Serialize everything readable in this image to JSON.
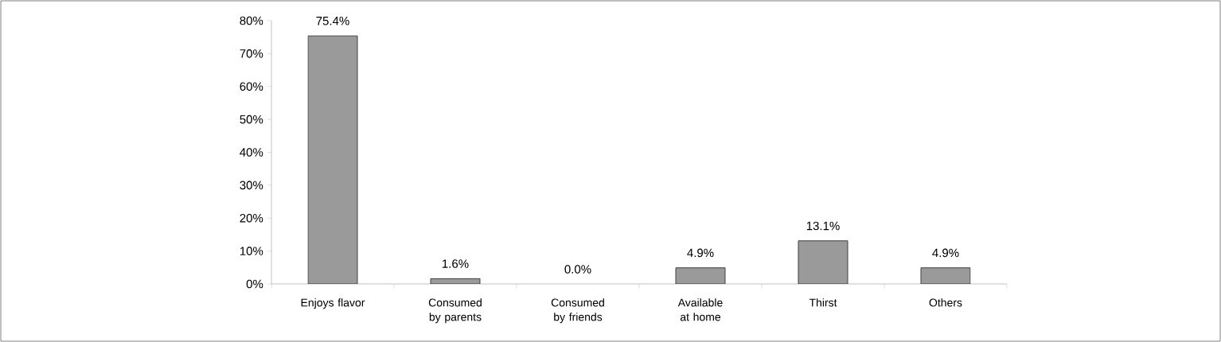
{
  "chart_data": {
    "type": "bar",
    "categories": [
      "Enjoys flavor",
      "Consumed by parents",
      "Consumed by friends",
      "Available at home",
      "Thirst",
      "Others"
    ],
    "values": [
      75.4,
      1.6,
      0.0,
      4.9,
      13.1,
      4.9
    ],
    "value_labels": [
      "75.4%",
      "1.6%",
      "0.0%",
      "4.9%",
      "13.1%",
      "4.9%"
    ],
    "color": "#9a9a9a",
    "ylim": [
      0,
      80
    ],
    "yticks": [
      {
        "value": 0,
        "label": "0%"
      },
      {
        "value": 10,
        "label": "10%"
      },
      {
        "value": 20,
        "label": "20%"
      },
      {
        "value": 30,
        "label": "30%"
      },
      {
        "value": 40,
        "label": "40%"
      },
      {
        "value": 50,
        "label": "50%"
      },
      {
        "value": 60,
        "label": "60%"
      },
      {
        "value": 70,
        "label": "70%"
      },
      {
        "value": 80,
        "label": "80%"
      }
    ],
    "grid": false
  }
}
